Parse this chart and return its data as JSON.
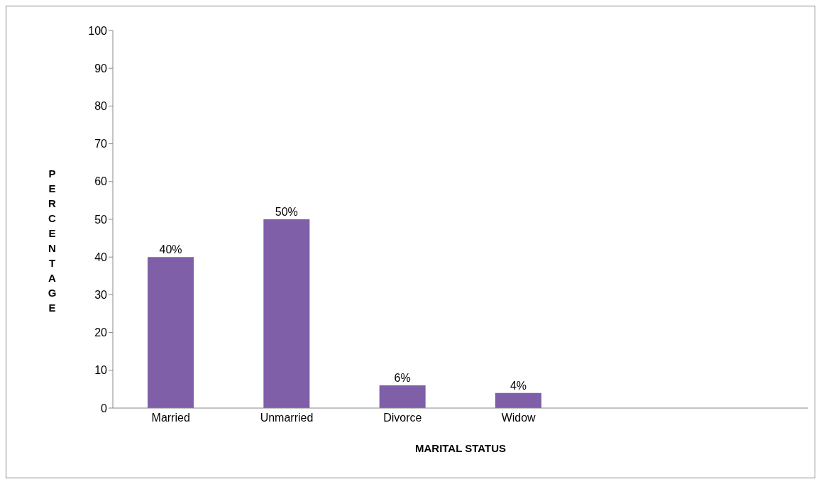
{
  "chart_data": {
    "type": "bar",
    "xlabel": "MARITAL STATUS",
    "ylabel": "PERCENTAGE",
    "categories": [
      "Married",
      "Unmarried",
      "Divorce",
      "Widow",
      null,
      null
    ],
    "values": [
      40,
      50,
      6,
      4,
      null,
      null
    ],
    "value_labels": [
      "40%",
      "50%",
      "6%",
      "4%",
      null,
      null
    ],
    "color": "#7f5fa8",
    "ylim": [
      0,
      100
    ],
    "yticks": [
      0,
      10,
      20,
      30,
      40,
      50,
      60,
      70,
      80,
      90,
      100
    ],
    "grid": false,
    "legend": false
  }
}
